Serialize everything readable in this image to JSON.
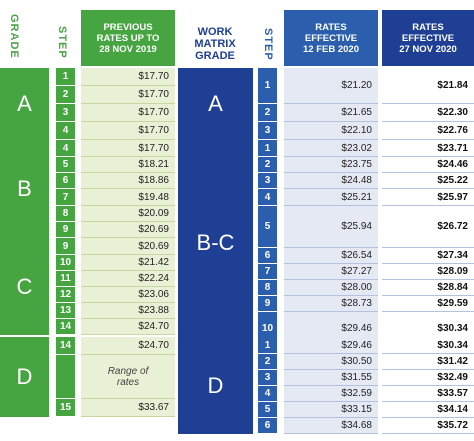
{
  "headers": {
    "grade": "GRADE",
    "step": "STEP",
    "previous": "PREVIOUS\nRATES UP TO\n28 NOV 2019",
    "work_matrix": "WORK\nMATRIX\nGRADE",
    "step2": "STEP",
    "rates_feb": "RATES\nEFFECTIVE\n12 FEB 2020",
    "rates_nov": "RATES\nEFFECTIVE\n27 NOV 2020"
  },
  "left_groups": [
    {
      "grade": "A",
      "rows": [
        {
          "step": "1",
          "rate": "$17.70"
        },
        {
          "step": "2",
          "rate": "$17.70"
        },
        {
          "step": "3",
          "rate": "$17.70"
        },
        {
          "step": "4",
          "rate": "$17.70"
        }
      ]
    },
    {
      "grade": "B",
      "rows": [
        {
          "step": "4",
          "rate": "$17.70"
        },
        {
          "step": "5",
          "rate": "$18.21"
        },
        {
          "step": "6",
          "rate": "$18.86"
        },
        {
          "step": "7",
          "rate": "$19.48"
        },
        {
          "step": "8",
          "rate": "$20.09"
        },
        {
          "step": "9",
          "rate": "$20.69"
        }
      ]
    },
    {
      "grade": "C",
      "rows": [
        {
          "step": "9",
          "rate": "$20.69"
        },
        {
          "step": "10",
          "rate": "$21.42"
        },
        {
          "step": "11",
          "rate": "$22.24"
        },
        {
          "step": "12",
          "rate": "$23.06"
        },
        {
          "step": "13",
          "rate": "$23.88"
        },
        {
          "step": "14",
          "rate": "$24.70"
        }
      ]
    },
    {
      "grade": "D",
      "rows": [
        {
          "step": "14",
          "rate": "$24.70"
        },
        {
          "step": "",
          "rate": "Range of\nrates"
        },
        {
          "step": "15",
          "rate": "$33.67"
        }
      ]
    }
  ],
  "right_groups": [
    {
      "grade": "A",
      "rows": [
        {
          "step": "1",
          "feb": "$21.20",
          "nov": "$21.84"
        },
        {
          "step": "2",
          "feb": "$21.65",
          "nov": "$22.30"
        },
        {
          "step": "3",
          "feb": "$22.10",
          "nov": "$22.76"
        }
      ]
    },
    {
      "grade": "B-C",
      "rows": [
        {
          "step": "1",
          "feb": "$23.02",
          "nov": "$23.71"
        },
        {
          "step": "2",
          "feb": "$23.75",
          "nov": "$24.46"
        },
        {
          "step": "3",
          "feb": "$24.48",
          "nov": "$25.22"
        },
        {
          "step": "4",
          "feb": "$25.21",
          "nov": "$25.97"
        },
        {
          "step": "5",
          "feb": "$25.94",
          "nov": "$26.72"
        },
        {
          "step": "6",
          "feb": "$26.54",
          "nov": "$27.34"
        },
        {
          "step": "7",
          "feb": "$27.27",
          "nov": "$28.09"
        },
        {
          "step": "8",
          "feb": "$28.00",
          "nov": "$28.84"
        },
        {
          "step": "9",
          "feb": "$28.73",
          "nov": "$29.59"
        },
        {
          "step": "10",
          "feb": "$29.46",
          "nov": "$30.34"
        }
      ]
    },
    {
      "grade": "D",
      "rows": [
        {
          "step": "1",
          "feb": "$29.46",
          "nov": "$30.34"
        },
        {
          "step": "2",
          "feb": "$30.50",
          "nov": "$31.42"
        },
        {
          "step": "3",
          "feb": "$31.55",
          "nov": "$32.49"
        },
        {
          "step": "4",
          "feb": "$32.59",
          "nov": "$33.57"
        },
        {
          "step": "5",
          "feb": "$33.15",
          "nov": "$34.14"
        },
        {
          "step": "6",
          "feb": "$34.68",
          "nov": "$35.72"
        }
      ]
    }
  ],
  "colors": {
    "green": "#46a540",
    "light_green": "#e8f0d5",
    "navy": "#1f3f95",
    "blue": "#2b5fae",
    "light_blue": "#e5e9f3"
  }
}
